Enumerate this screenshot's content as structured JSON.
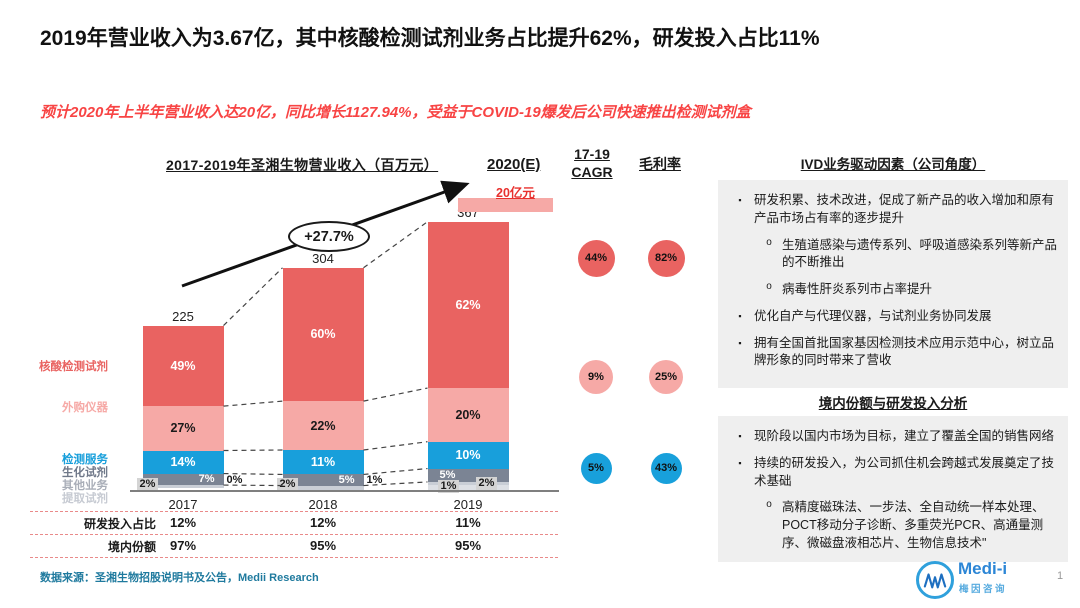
{
  "slide": {
    "title": "2019年营业收入为3.67亿，其中核酸检测试剂业务占比提升62%，研发投入占比11%",
    "subtitle": "预计2020年上半年营业收入达20亿，同比增长1127.94%，受益于COVID-19爆发后公司快速推出检测试剂盒",
    "page_number": "1"
  },
  "chart_data": {
    "type": "bar",
    "stacked": true,
    "title": "2017-2019年圣湘生物营业收入（百万元）",
    "unit": "百万元",
    "categories": [
      "2017",
      "2018",
      "2019"
    ],
    "totals": [
      225,
      304,
      367
    ],
    "series": [
      {
        "name": "核酸检测试剂",
        "color": "#E96361",
        "label_color": "#FFFFFF",
        "values_pct": [
          49,
          60,
          62
        ]
      },
      {
        "name": "外购仪器",
        "color": "#F6A9A6",
        "label_color": "#1A1A1A",
        "values_pct": [
          27,
          22,
          20
        ]
      },
      {
        "name": "检测服务",
        "color": "#189FDB",
        "label_color": "#FFFFFF",
        "values_pct": [
          14,
          11,
          10
        ]
      },
      {
        "name": "生化试剂",
        "color": "#7B8494",
        "label_color": "#FFFFFF",
        "values_pct": [
          7,
          5,
          5
        ]
      },
      {
        "name": "其他业务",
        "color": "#C9CED6",
        "label_color": "#1A1A1A",
        "values_pct": [
          2,
          2,
          1
        ]
      },
      {
        "name": "提取试剂",
        "color": "#DDE0E5",
        "label_color": "#1A1A1A",
        "values_pct": [
          0,
          1,
          2
        ]
      }
    ],
    "growth_annotation": "+27.7%",
    "forecast": {
      "header": "2020(E)",
      "value_label": "20亿元"
    },
    "metrics": {
      "cagr_header_line1": "17-19",
      "cagr_header_line2": "CAGR",
      "margin_header": "毛利率",
      "rows": [
        {
          "series": "核酸检测试剂",
          "cagr": "44%",
          "margin": "82%",
          "color": "#E96361"
        },
        {
          "series": "外购仪器",
          "cagr": "9%",
          "margin": "25%",
          "color": "#F6A9A6"
        },
        {
          "series": "检测服务",
          "cagr": "5%",
          "margin": "43%",
          "color": "#18A0DB"
        }
      ]
    },
    "bottom_table": {
      "rows": [
        {
          "label": "研发投入占比",
          "values": [
            "12%",
            "12%",
            "11%"
          ]
        },
        {
          "label": "境内份额",
          "values": [
            "97%",
            "95%",
            "95%"
          ]
        }
      ]
    }
  },
  "ivd_panel": {
    "title": "IVD业务驱动因素（公司角度）",
    "items": [
      {
        "level": 1,
        "text": "研发积累、技术改进，促成了新产品的收入增加和原有产品市场占有率的逐步提升"
      },
      {
        "level": 2,
        "text": "生殖道感染与遗传系列、呼吸道感染系列等新产品的不断推出"
      },
      {
        "level": 2,
        "text": "病毒性肝炎系列市占率提升"
      },
      {
        "level": 1,
        "text": "优化自产与代理仪器，与试剂业务协同发展"
      },
      {
        "level": 1,
        "text": "拥有全国首批国家基因检测技术应用示范中心，树立品牌形象的同时带来了营收"
      }
    ]
  },
  "domestic_panel": {
    "title": "境内份额与研发投入分析",
    "items": [
      {
        "level": 1,
        "text": "现阶段以国内市场为目标，建立了覆盖全国的销售网络"
      },
      {
        "level": 1,
        "text": "持续的研发投入，为公司抓住机会跨越式发展奠定了技术基础"
      },
      {
        "level": 2,
        "text": "高精度磁珠法、一步法、全自动统一样本处理、POCT移动分子诊断、多重荧光PCR、高通量测序、微磁盘液相芯片、生物信息技术\""
      }
    ]
  },
  "footer": {
    "source": "数据来源：圣湘生物招股说明书及公告，Medii Research",
    "logo_text": "Medi-i",
    "logo_subtext": "梅因咨询"
  },
  "colors": {
    "accent_red": "#E8312E",
    "subtitle_red": "#F84444",
    "source_teal": "#1F7A9E",
    "logo_blue": "#2C86D6",
    "panel_gray": "#EFEFEF"
  }
}
